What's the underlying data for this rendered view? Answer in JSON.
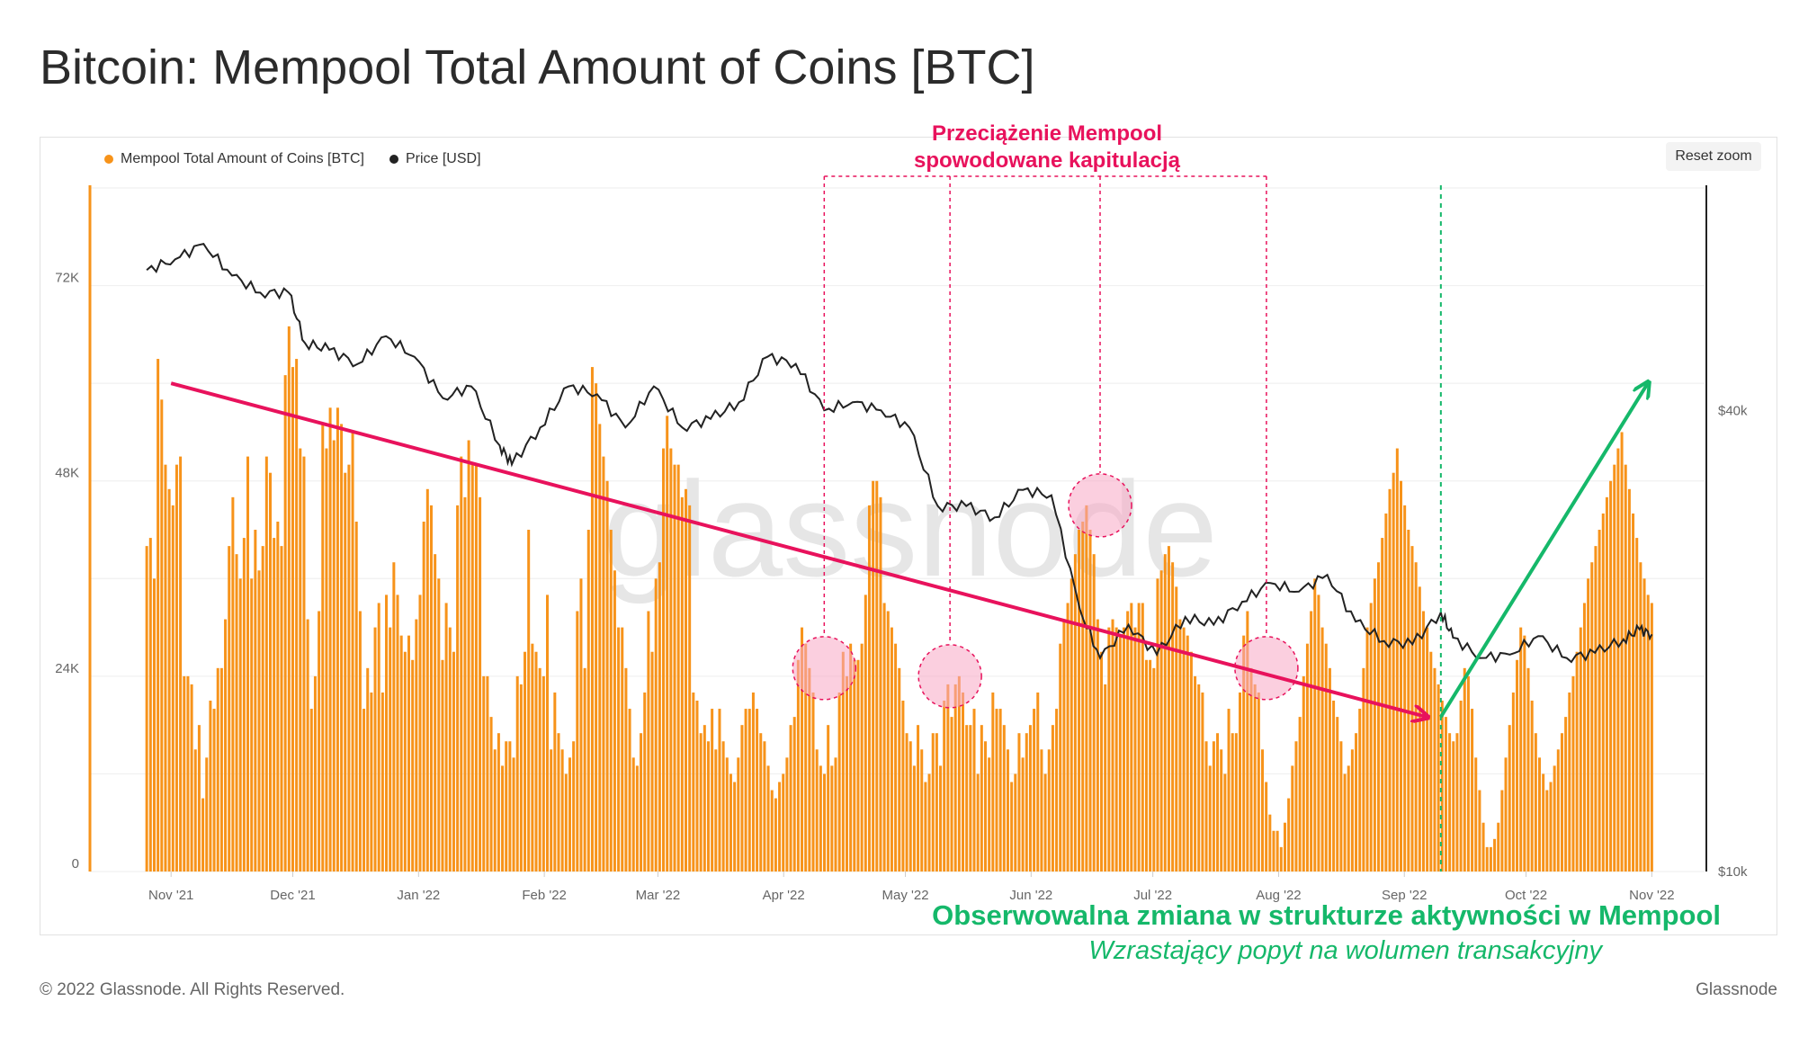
{
  "header": {
    "title": "Bitcoin: Mempool Total Amount of Coins [BTC]"
  },
  "toolbar": {
    "reset_zoom_label": "Reset zoom"
  },
  "legend": [
    {
      "label": "Mempool Total Amount of Coins [BTC]",
      "color": "#f7931a"
    },
    {
      "label": "Price [USD]",
      "color": "#222222"
    }
  ],
  "annotations": {
    "overload_line1": "Przeciążenie Mempool",
    "overload_line2": "spowodowane kapitulacją",
    "change_title": "Obserwowalna zmiana w strukturze aktywności w Mempool",
    "change_subtitle": "Wzrastający popyt na wolumen transakcyjny"
  },
  "watermark": "glassnode",
  "footer": {
    "copyright": "© 2022 Glassnode. All Rights Reserved.",
    "brand": "Glassnode"
  },
  "colors": {
    "bars": "#f7931a",
    "price": "#222222",
    "accent_pink": "#e8125c",
    "accent_green": "#15b86a"
  },
  "chart_data": {
    "type": "bar",
    "title": "Bitcoin: Mempool Total Amount of Coins [BTC]",
    "x_tick_labels": [
      "Nov '21",
      "Dec '21",
      "Jan '22",
      "Feb '22",
      "Mar '22",
      "Apr '22",
      "May '22",
      "Jun '22",
      "Jul '22",
      "Aug '22",
      "Sep '22",
      "Oct '22",
      "Nov '22"
    ],
    "y_left": {
      "ticks": [
        "0",
        "24K",
        "48K",
        "72K"
      ],
      "range": [
        0,
        85000
      ]
    },
    "y_right": {
      "ticks": [
        "$10k",
        "$40k"
      ],
      "scale": "log",
      "range": [
        10000,
        80000
      ]
    },
    "series": [
      {
        "name": "Mempool Total Amount of Coins [BTC]",
        "color": "#f7931a",
        "x_range": [
          "2021-10-26",
          "2022-11-01"
        ],
        "values": [
          40000,
          41000,
          36000,
          63000,
          58000,
          50000,
          47000,
          45000,
          50000,
          51000,
          24000,
          24000,
          23000,
          15000,
          18000,
          9000,
          14000,
          21000,
          20000,
          25000,
          25000,
          31000,
          40000,
          46000,
          39000,
          36000,
          41000,
          51000,
          36000,
          42000,
          37000,
          40000,
          51000,
          49000,
          41000,
          43000,
          40000,
          61000,
          67000,
          62000,
          63000,
          52000,
          51000,
          31000,
          20000,
          24000,
          32000,
          55000,
          52000,
          57000,
          53000,
          57000,
          55000,
          49000,
          50000,
          54000,
          43000,
          32000,
          20000,
          25000,
          22000,
          30000,
          33000,
          22000,
          34000,
          30000,
          38000,
          34000,
          29000,
          27000,
          29000,
          26000,
          31000,
          34000,
          43000,
          47000,
          45000,
          39000,
          36000,
          26000,
          33000,
          30000,
          27000,
          45000,
          51000,
          46000,
          53000,
          50000,
          50000,
          46000,
          24000,
          24000,
          19000,
          15000,
          17000,
          13000,
          16000,
          16000,
          14000,
          24000,
          23000,
          27000,
          42000,
          28000,
          27000,
          25000,
          24000,
          34000,
          15000,
          22000,
          17000,
          15000,
          12000,
          14000,
          16000,
          32000,
          36000,
          25000,
          42000,
          62000,
          60000,
          55000,
          51000,
          48000,
          42000,
          37000,
          30000,
          30000,
          25000,
          20000,
          14000,
          13000,
          17000,
          22000,
          32000,
          27000,
          36000,
          38000,
          52000,
          56000,
          52000,
          50000,
          50000,
          46000,
          47000,
          45000,
          22000,
          21000,
          17000,
          18000,
          16000,
          20000,
          15000,
          20000,
          16000,
          14000,
          12000,
          11000,
          14000,
          18000,
          20000,
          20000,
          22000,
          20000,
          17000,
          16000,
          13000,
          10000,
          9000,
          11000,
          12000,
          14000,
          18000,
          19000,
          26000,
          30000,
          28000,
          25000,
          22000,
          15000,
          13000,
          12000,
          18000,
          13000,
          14000,
          22000,
          27000,
          24000,
          28000,
          26000,
          26000,
          28000,
          34000,
          45000,
          48000,
          48000,
          46000,
          33000,
          32000,
          30000,
          28000,
          25000,
          21000,
          17000,
          16000,
          13000,
          18000,
          15000,
          11000,
          12000,
          17000,
          17000,
          13000,
          21000,
          23000,
          19000,
          23000,
          24000,
          22000,
          18000,
          18000,
          20000,
          12000,
          18000,
          16000,
          14000,
          22000,
          20000,
          20000,
          18000,
          15000,
          11000,
          12000,
          17000,
          14000,
          17000,
          18000,
          20000,
          22000,
          15000,
          12000,
          15000,
          18000,
          20000,
          28000,
          31000,
          33000,
          36000,
          39000,
          42000,
          43000,
          45000,
          42000,
          39000,
          31000,
          27000,
          23000,
          30000,
          31000,
          30000,
          29000,
          30000,
          32000,
          33000,
          30000,
          33000,
          33000,
          26000,
          26000,
          25000,
          36000,
          37000,
          39000,
          40000,
          38000,
          35000,
          31000,
          30000,
          29000,
          27000,
          24000,
          23000,
          22000,
          16000,
          13000,
          16000,
          17000,
          15000,
          12000,
          20000,
          17000,
          17000,
          22000,
          29000,
          32000,
          25000,
          23000,
          22000,
          15000,
          11000,
          7000,
          5000,
          5000,
          3000,
          6000,
          9000,
          13000,
          16000,
          19000,
          24000,
          28000,
          32000,
          36000,
          34000,
          30000,
          28000,
          25000,
          21000,
          19000,
          16000,
          12000,
          13000,
          15000,
          17000,
          20000,
          25000,
          30000,
          33000,
          36000,
          38000,
          41000,
          44000,
          47000,
          49000,
          52000,
          48000,
          45000,
          42000,
          40000,
          38000,
          35000,
          32000,
          30000,
          27000,
          25000,
          23000,
          21000,
          19000,
          17000,
          16000,
          17000,
          21000,
          25000,
          24000,
          20000,
          14000,
          10000,
          6000,
          3000,
          3000,
          4000,
          6000,
          10000,
          14000,
          18000,
          22000,
          26000,
          30000,
          29000,
          25000,
          21000,
          17000,
          14000,
          12000,
          10000,
          11000,
          13000,
          15000,
          17000,
          19000,
          22000,
          24000,
          27000,
          30000,
          33000,
          36000,
          38000,
          40000,
          42000,
          44000,
          46000,
          48000,
          50000,
          52000,
          54000,
          50000,
          47000,
          44000,
          41000,
          38000,
          36000,
          34000,
          33000
        ]
      },
      {
        "name": "Price [USD]",
        "color": "#222222",
        "points": [
          {
            "x": "2021-10-26",
            "y": 61000
          },
          {
            "x": "2021-11-02",
            "y": 63000
          },
          {
            "x": "2021-11-09",
            "y": 66000
          },
          {
            "x": "2021-11-16",
            "y": 60000
          },
          {
            "x": "2021-11-23",
            "y": 57000
          },
          {
            "x": "2021-11-30",
            "y": 57000
          },
          {
            "x": "2021-12-04",
            "y": 49000
          },
          {
            "x": "2021-12-10",
            "y": 48000
          },
          {
            "x": "2021-12-17",
            "y": 46000
          },
          {
            "x": "2021-12-24",
            "y": 50000
          },
          {
            "x": "2021-12-31",
            "y": 47000
          },
          {
            "x": "2022-01-07",
            "y": 41500
          },
          {
            "x": "2022-01-14",
            "y": 43000
          },
          {
            "x": "2022-01-21",
            "y": 36000
          },
          {
            "x": "2022-01-24",
            "y": 34000
          },
          {
            "x": "2022-01-31",
            "y": 38000
          },
          {
            "x": "2022-02-07",
            "y": 43000
          },
          {
            "x": "2022-02-14",
            "y": 42000
          },
          {
            "x": "2022-02-21",
            "y": 38000
          },
          {
            "x": "2022-02-28",
            "y": 43000
          },
          {
            "x": "2022-03-07",
            "y": 38000
          },
          {
            "x": "2022-03-14",
            "y": 39000
          },
          {
            "x": "2022-03-21",
            "y": 41000
          },
          {
            "x": "2022-03-28",
            "y": 47000
          },
          {
            "x": "2022-04-04",
            "y": 46000
          },
          {
            "x": "2022-04-11",
            "y": 40000
          },
          {
            "x": "2022-04-18",
            "y": 41000
          },
          {
            "x": "2022-04-25",
            "y": 40000
          },
          {
            "x": "2022-05-02",
            "y": 38000
          },
          {
            "x": "2022-05-09",
            "y": 30000
          },
          {
            "x": "2022-05-16",
            "y": 30000
          },
          {
            "x": "2022-05-23",
            "y": 29000
          },
          {
            "x": "2022-05-30",
            "y": 31500
          },
          {
            "x": "2022-06-06",
            "y": 31000
          },
          {
            "x": "2022-06-13",
            "y": 22000
          },
          {
            "x": "2022-06-18",
            "y": 19000
          },
          {
            "x": "2022-06-25",
            "y": 21000
          },
          {
            "x": "2022-07-02",
            "y": 19200
          },
          {
            "x": "2022-07-09",
            "y": 21500
          },
          {
            "x": "2022-07-16",
            "y": 21000
          },
          {
            "x": "2022-07-23",
            "y": 22500
          },
          {
            "x": "2022-07-30",
            "y": 23800
          },
          {
            "x": "2022-08-06",
            "y": 23200
          },
          {
            "x": "2022-08-13",
            "y": 24400
          },
          {
            "x": "2022-08-20",
            "y": 21200
          },
          {
            "x": "2022-08-27",
            "y": 20000
          },
          {
            "x": "2022-09-03",
            "y": 19800
          },
          {
            "x": "2022-09-10",
            "y": 21800
          },
          {
            "x": "2022-09-13",
            "y": 20200
          },
          {
            "x": "2022-09-20",
            "y": 19000
          },
          {
            "x": "2022-09-27",
            "y": 19200
          },
          {
            "x": "2022-10-04",
            "y": 20300
          },
          {
            "x": "2022-10-11",
            "y": 19000
          },
          {
            "x": "2022-10-18",
            "y": 19300
          },
          {
            "x": "2022-10-25",
            "y": 20100
          },
          {
            "x": "2022-10-29",
            "y": 20700
          },
          {
            "x": "2022-11-01",
            "y": 20400
          }
        ]
      }
    ],
    "events": {
      "overload_peaks": [
        "2022-04-11",
        "2022-05-12",
        "2022-06-18",
        "2022-07-29"
      ],
      "regime_change": "2022-09-10"
    }
  }
}
